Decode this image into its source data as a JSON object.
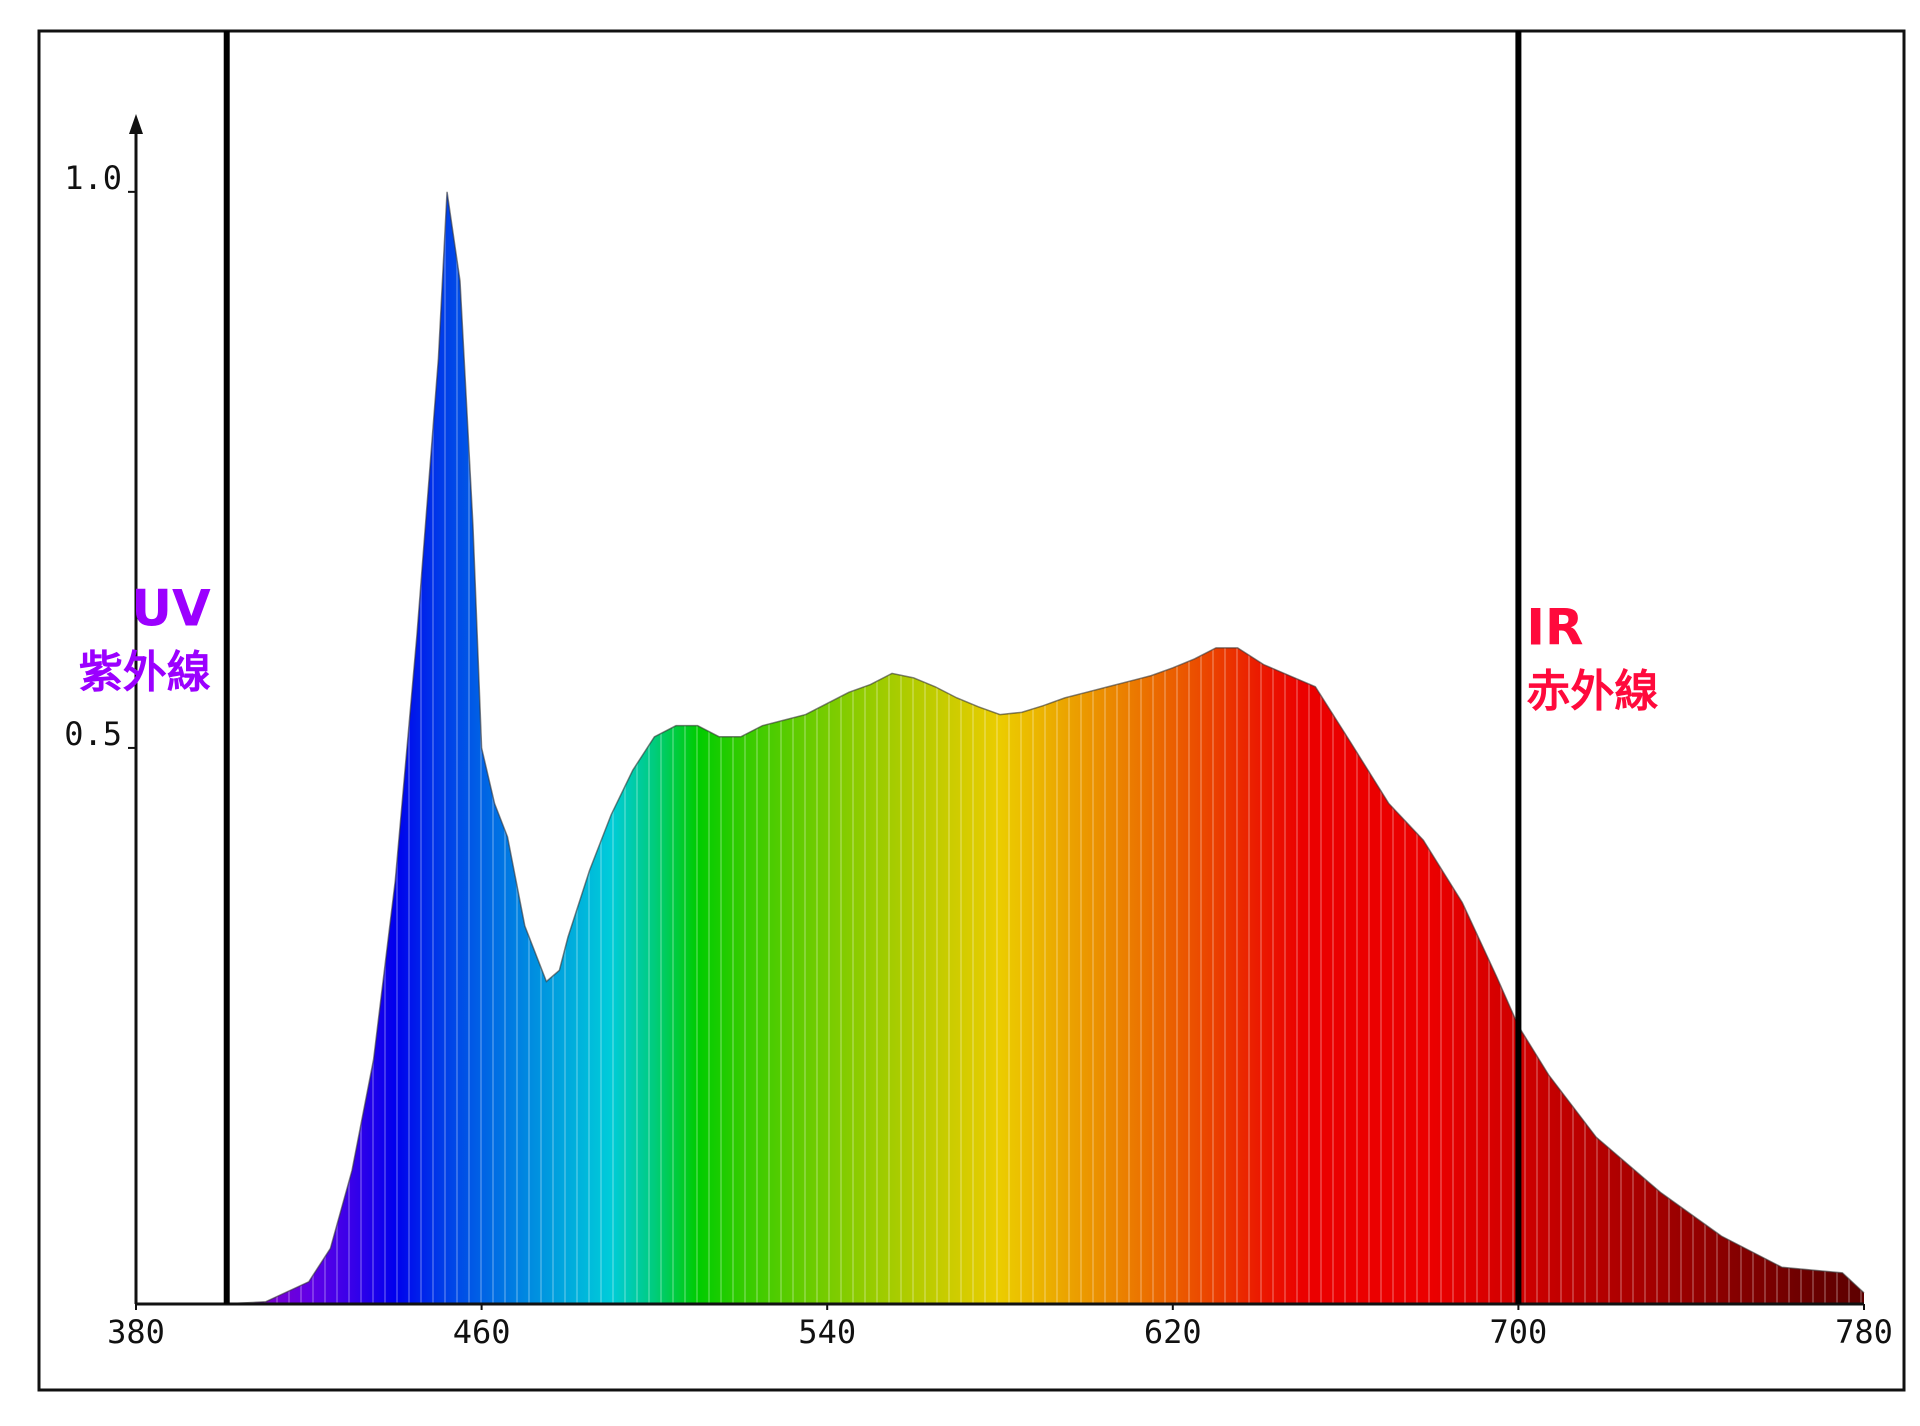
{
  "chart_data": {
    "type": "area",
    "x": [
      380,
      400,
      410,
      420,
      425,
      430,
      435,
      440,
      445,
      450,
      452,
      455,
      458,
      460,
      463,
      466,
      470,
      475,
      478,
      480,
      485,
      490,
      495,
      500,
      505,
      510,
      515,
      520,
      525,
      530,
      535,
      540,
      545,
      550,
      555,
      560,
      565,
      570,
      575,
      580,
      585,
      590,
      595,
      600,
      605,
      610,
      615,
      620,
      625,
      630,
      635,
      641,
      647,
      653,
      661,
      670,
      678,
      687,
      695,
      700,
      707,
      718,
      733,
      747,
      761,
      775,
      780
    ],
    "values": [
      0,
      0,
      0.002,
      0.02,
      0.05,
      0.12,
      0.22,
      0.38,
      0.6,
      0.85,
      1.0,
      0.92,
      0.7,
      0.5,
      0.45,
      0.42,
      0.34,
      0.29,
      0.3,
      0.33,
      0.39,
      0.44,
      0.48,
      0.51,
      0.52,
      0.52,
      0.51,
      0.51,
      0.52,
      0.525,
      0.53,
      0.54,
      0.55,
      0.557,
      0.567,
      0.563,
      0.555,
      0.545,
      0.537,
      0.53,
      0.532,
      0.538,
      0.545,
      0.55,
      0.555,
      0.56,
      0.565,
      0.572,
      0.58,
      0.59,
      0.59,
      0.575,
      0.565,
      0.555,
      0.506,
      0.45,
      0.417,
      0.361,
      0.294,
      0.25,
      0.206,
      0.15,
      0.1,
      0.061,
      0.033,
      0.028,
      0.01
    ],
    "xlim": [
      380,
      780
    ],
    "ylim": [
      0,
      1.07
    ],
    "xticks": [
      380,
      460,
      540,
      620,
      700,
      780
    ],
    "yticks": [
      0.5,
      {
        "value": 1,
        "label": "1.0"
      }
    ],
    "markers": [
      {
        "x": 401,
        "label": "UV",
        "sublabel": "紫外線",
        "color": "#9b00ff"
      },
      {
        "x": 700,
        "label": "IR",
        "sublabel": "赤外線",
        "color": "#ff0a3c"
      }
    ]
  }
}
